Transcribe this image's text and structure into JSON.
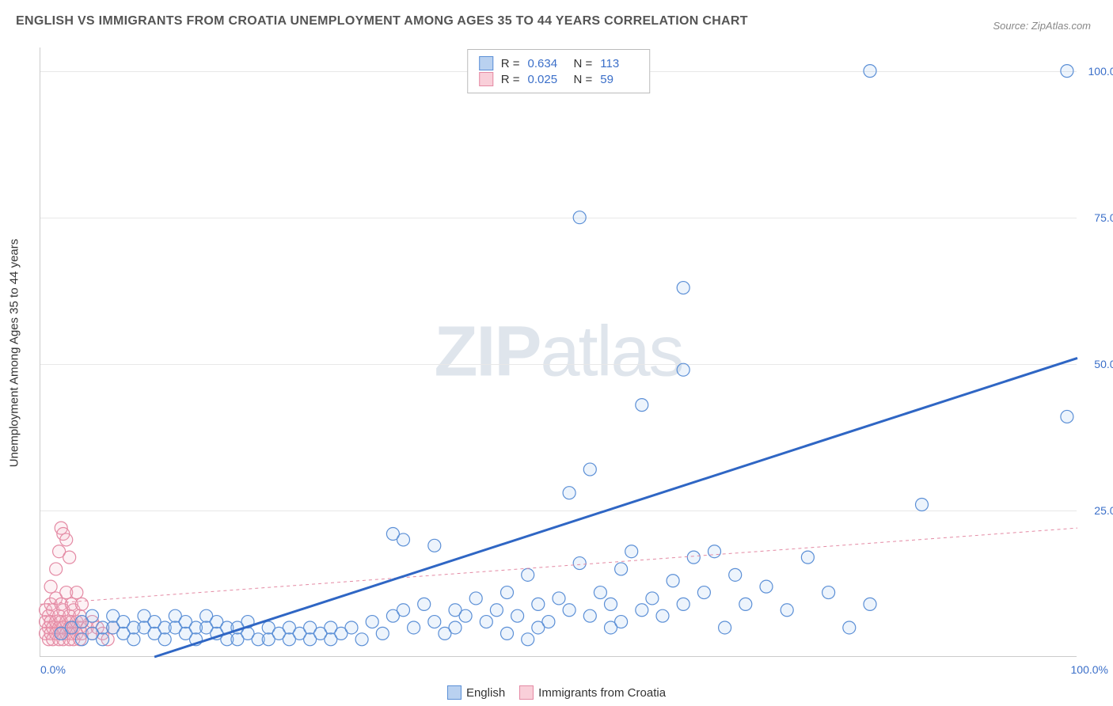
{
  "title": "ENGLISH VS IMMIGRANTS FROM CROATIA UNEMPLOYMENT AMONG AGES 35 TO 44 YEARS CORRELATION CHART",
  "source": "Source: ZipAtlas.com",
  "watermark_zip": "ZIP",
  "watermark_atlas": "atlas",
  "ylabel": "Unemployment Among Ages 35 to 44 years",
  "chart": {
    "type": "scatter",
    "xlim": [
      0,
      100
    ],
    "ylim": [
      0,
      104
    ],
    "xtick_left": "0.0%",
    "xtick_right": "100.0%",
    "yticks": [
      {
        "v": 25,
        "label": "25.0%"
      },
      {
        "v": 50,
        "label": "50.0%"
      },
      {
        "v": 75,
        "label": "75.0%"
      },
      {
        "v": 100,
        "label": "100.0%"
      }
    ],
    "grid_color": "#e8e8e8",
    "axis_color": "#cccccc",
    "background_color": "#ffffff",
    "marker_radius": 8,
    "series": [
      {
        "name": "English",
        "color_fill": "#9ac0ee",
        "color_stroke": "#5b8fd6",
        "swatch_fill": "#b9d1f0",
        "swatch_border": "#5b8fd6",
        "R": "0.634",
        "N": "113",
        "trend": {
          "x1": 11,
          "y1": 0,
          "x2": 100,
          "y2": 51,
          "stroke": "#2f66c4",
          "width": 3,
          "dash": "none"
        },
        "points": [
          [
            2,
            4
          ],
          [
            3,
            5
          ],
          [
            4,
            3
          ],
          [
            4,
            6
          ],
          [
            5,
            4
          ],
          [
            5,
            7
          ],
          [
            6,
            5
          ],
          [
            6,
            3
          ],
          [
            7,
            5
          ],
          [
            7,
            7
          ],
          [
            8,
            4
          ],
          [
            8,
            6
          ],
          [
            9,
            5
          ],
          [
            9,
            3
          ],
          [
            10,
            5
          ],
          [
            10,
            7
          ],
          [
            11,
            4
          ],
          [
            11,
            6
          ],
          [
            12,
            5
          ],
          [
            12,
            3
          ],
          [
            13,
            5
          ],
          [
            13,
            7
          ],
          [
            14,
            4
          ],
          [
            14,
            6
          ],
          [
            15,
            5
          ],
          [
            15,
            3
          ],
          [
            16,
            5
          ],
          [
            16,
            7
          ],
          [
            17,
            4
          ],
          [
            17,
            6
          ],
          [
            18,
            5
          ],
          [
            18,
            3
          ],
          [
            19,
            3
          ],
          [
            19,
            5
          ],
          [
            20,
            4
          ],
          [
            20,
            6
          ],
          [
            21,
            3
          ],
          [
            22,
            5
          ],
          [
            22,
            3
          ],
          [
            23,
            4
          ],
          [
            24,
            5
          ],
          [
            24,
            3
          ],
          [
            25,
            4
          ],
          [
            26,
            5
          ],
          [
            26,
            3
          ],
          [
            27,
            4
          ],
          [
            28,
            5
          ],
          [
            28,
            3
          ],
          [
            29,
            4
          ],
          [
            30,
            5
          ],
          [
            31,
            3
          ],
          [
            32,
            6
          ],
          [
            33,
            4
          ],
          [
            34,
            7
          ],
          [
            35,
            8
          ],
          [
            36,
            5
          ],
          [
            37,
            9
          ],
          [
            38,
            6
          ],
          [
            39,
            4
          ],
          [
            40,
            8
          ],
          [
            34,
            21
          ],
          [
            35,
            20
          ],
          [
            38,
            19
          ],
          [
            40,
            5
          ],
          [
            41,
            7
          ],
          [
            42,
            10
          ],
          [
            43,
            6
          ],
          [
            44,
            8
          ],
          [
            45,
            11
          ],
          [
            46,
            7
          ],
          [
            47,
            14
          ],
          [
            48,
            9
          ],
          [
            49,
            6
          ],
          [
            50,
            10
          ],
          [
            51,
            8
          ],
          [
            52,
            16
          ],
          [
            53,
            7
          ],
          [
            54,
            11
          ],
          [
            55,
            9
          ],
          [
            56,
            15
          ],
          [
            57,
            18
          ],
          [
            58,
            8
          ],
          [
            59,
            10
          ],
          [
            51,
            28
          ],
          [
            52,
            75
          ],
          [
            53,
            32
          ],
          [
            60,
            7
          ],
          [
            61,
            13
          ],
          [
            62,
            9
          ],
          [
            58,
            43
          ],
          [
            63,
            17
          ],
          [
            64,
            11
          ],
          [
            65,
            18
          ],
          [
            66,
            5
          ],
          [
            62,
            49
          ],
          [
            62,
            63
          ],
          [
            67,
            14
          ],
          [
            68,
            9
          ],
          [
            70,
            12
          ],
          [
            72,
            8
          ],
          [
            74,
            17
          ],
          [
            76,
            11
          ],
          [
            78,
            5
          ],
          [
            80,
            9
          ],
          [
            85,
            26
          ],
          [
            80,
            100
          ],
          [
            99,
            100
          ],
          [
            99,
            41
          ],
          [
            45,
            4
          ],
          [
            47,
            3
          ],
          [
            48,
            5
          ],
          [
            55,
            5
          ],
          [
            56,
            6
          ]
        ]
      },
      {
        "name": "Immigrants from Croatia",
        "color_fill": "#f5b8c8",
        "color_stroke": "#e48aa4",
        "swatch_fill": "#f9cfd9",
        "swatch_border": "#e48aa4",
        "R": "0.025",
        "N": "59",
        "trend": {
          "x1": 0,
          "y1": 9,
          "x2": 100,
          "y2": 22,
          "stroke": "#e48aa4",
          "width": 1,
          "dash": "4 4"
        },
        "points": [
          [
            0.5,
            4
          ],
          [
            0.5,
            6
          ],
          [
            0.5,
            8
          ],
          [
            0.8,
            3
          ],
          [
            0.8,
            5
          ],
          [
            0.8,
            7
          ],
          [
            1,
            4
          ],
          [
            1,
            6
          ],
          [
            1,
            9
          ],
          [
            1,
            12
          ],
          [
            1.2,
            3
          ],
          [
            1.2,
            5
          ],
          [
            1.2,
            8
          ],
          [
            1.5,
            4
          ],
          [
            1.5,
            6
          ],
          [
            1.5,
            10
          ],
          [
            1.5,
            15
          ],
          [
            1.8,
            3
          ],
          [
            1.8,
            5
          ],
          [
            1.8,
            7
          ],
          [
            1.8,
            18
          ],
          [
            2,
            4
          ],
          [
            2,
            6
          ],
          [
            2,
            9
          ],
          [
            2,
            22
          ],
          [
            2.2,
            3
          ],
          [
            2.2,
            5
          ],
          [
            2.2,
            8
          ],
          [
            2.2,
            21
          ],
          [
            2.5,
            4
          ],
          [
            2.5,
            6
          ],
          [
            2.5,
            11
          ],
          [
            2.5,
            20
          ],
          [
            2.8,
            3
          ],
          [
            2.8,
            5
          ],
          [
            2.8,
            7
          ],
          [
            2.8,
            17
          ],
          [
            3,
            4
          ],
          [
            3,
            6
          ],
          [
            3,
            9
          ],
          [
            3.2,
            3
          ],
          [
            3.2,
            5
          ],
          [
            3.2,
            8
          ],
          [
            3.5,
            4
          ],
          [
            3.5,
            6
          ],
          [
            3.5,
            11
          ],
          [
            3.8,
            3
          ],
          [
            3.8,
            5
          ],
          [
            3.8,
            7
          ],
          [
            4,
            4
          ],
          [
            4,
            6
          ],
          [
            4,
            9
          ],
          [
            4.5,
            5
          ],
          [
            5,
            4
          ],
          [
            5,
            6
          ],
          [
            5.5,
            5
          ],
          [
            6,
            4
          ],
          [
            6.5,
            3
          ],
          [
            7,
            5
          ]
        ]
      }
    ]
  },
  "stat_legend": {
    "R_label": "R =",
    "N_label": "N ="
  },
  "bottom_legend": {
    "items": [
      {
        "label": "English",
        "fill": "#b9d1f0",
        "border": "#5b8fd6"
      },
      {
        "label": "Immigrants from Croatia",
        "fill": "#f9cfd9",
        "border": "#e48aa4"
      }
    ]
  }
}
